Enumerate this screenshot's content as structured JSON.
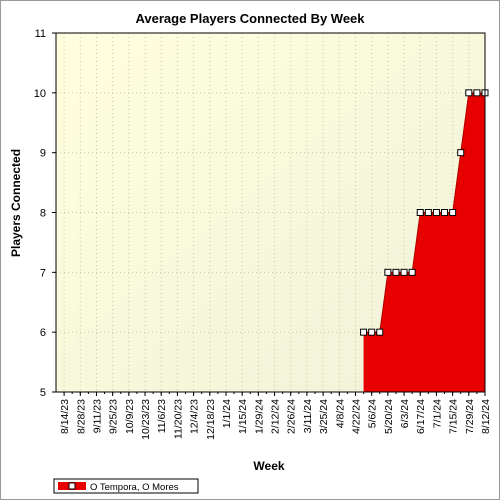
{
  "chart_data": {
    "type": "area",
    "title": "Average Players Connected By Week",
    "xlabel": "Week",
    "ylabel": "Players Connected",
    "ylim": [
      5,
      11
    ],
    "yticks": [
      5,
      6,
      7,
      8,
      9,
      10,
      11
    ],
    "grid": true,
    "legend_position": "bottom-left",
    "tick_labels": [
      "8/14/23",
      "8/28/23",
      "9/11/23",
      "9/25/23",
      "10/9/23",
      "10/23/23",
      "11/6/23",
      "11/20/23",
      "12/4/23",
      "12/18/23",
      "1/1/24",
      "1/15/24",
      "1/29/24",
      "2/12/24",
      "2/26/24",
      "3/11/24",
      "3/25/24",
      "4/8/24",
      "4/22/24",
      "5/6/24",
      "5/20/24",
      "6/3/24",
      "6/17/24",
      "7/1/24",
      "7/15/24",
      "7/29/24",
      "8/12/24"
    ],
    "x": [
      "4/29/24",
      "5/6/24",
      "5/13/24",
      "5/20/24",
      "5/27/24",
      "6/3/24",
      "6/10/24",
      "6/17/24",
      "6/24/24",
      "7/1/24",
      "7/8/24",
      "7/15/24",
      "7/22/24",
      "7/29/24",
      "8/5/24",
      "8/12/24"
    ],
    "series": [
      {
        "name": "O Tempora, O Mores",
        "color": "#e60000",
        "values": [
          6,
          6,
          6,
          7,
          7,
          7,
          7,
          8,
          8,
          8,
          8,
          8,
          9,
          10,
          10,
          10
        ]
      }
    ]
  },
  "colors": {
    "plot_bg_start": "#ffffdf",
    "plot_bg_end": "#f1f1d9",
    "grid": "#c9c9a8"
  }
}
